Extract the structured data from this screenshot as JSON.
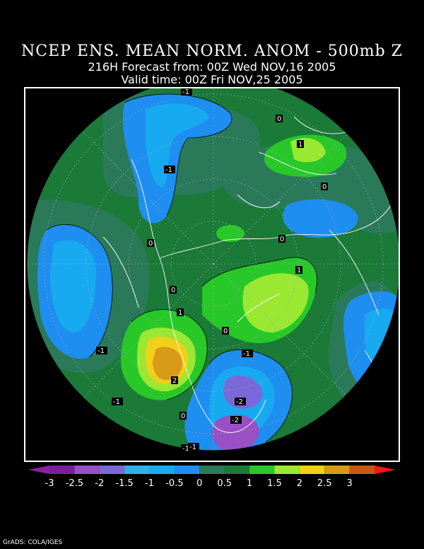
{
  "title": {
    "line1": "NCEP ENS. MEAN NORM. ANOM - 500mb Z",
    "line2": "216H Forecast from: 00Z Wed NOV,16 2005",
    "line3": "Valid time: 00Z Fri NOV,25 2005"
  },
  "colorbar": {
    "ticks": [
      "-3",
      "-2.5",
      "-2",
      "-1.5",
      "-1",
      "-0.5",
      "0",
      "0.5",
      "1",
      "1.5",
      "2",
      "2.5",
      "3"
    ],
    "colors": [
      "#7a1e9e",
      "#9a4fc4",
      "#7b68d8",
      "#2fb0e8",
      "#18aaf0",
      "#1e8ef0",
      "#2a7a5a",
      "#1b7a38",
      "#28c828",
      "#9ae832",
      "#f0d018",
      "#d89a18",
      "#c85a10",
      "#f01818",
      "#8c1ea8"
    ]
  },
  "contour_labels": [
    "-1",
    "-1",
    "0",
    "1",
    "0",
    "0",
    "0",
    "1",
    "0",
    "-1",
    "1",
    "0",
    "-1",
    "-1",
    "2",
    "-2",
    "-1",
    "0",
    "-2",
    "-1"
  ],
  "credit": "GrADS: COLA/IGES"
}
